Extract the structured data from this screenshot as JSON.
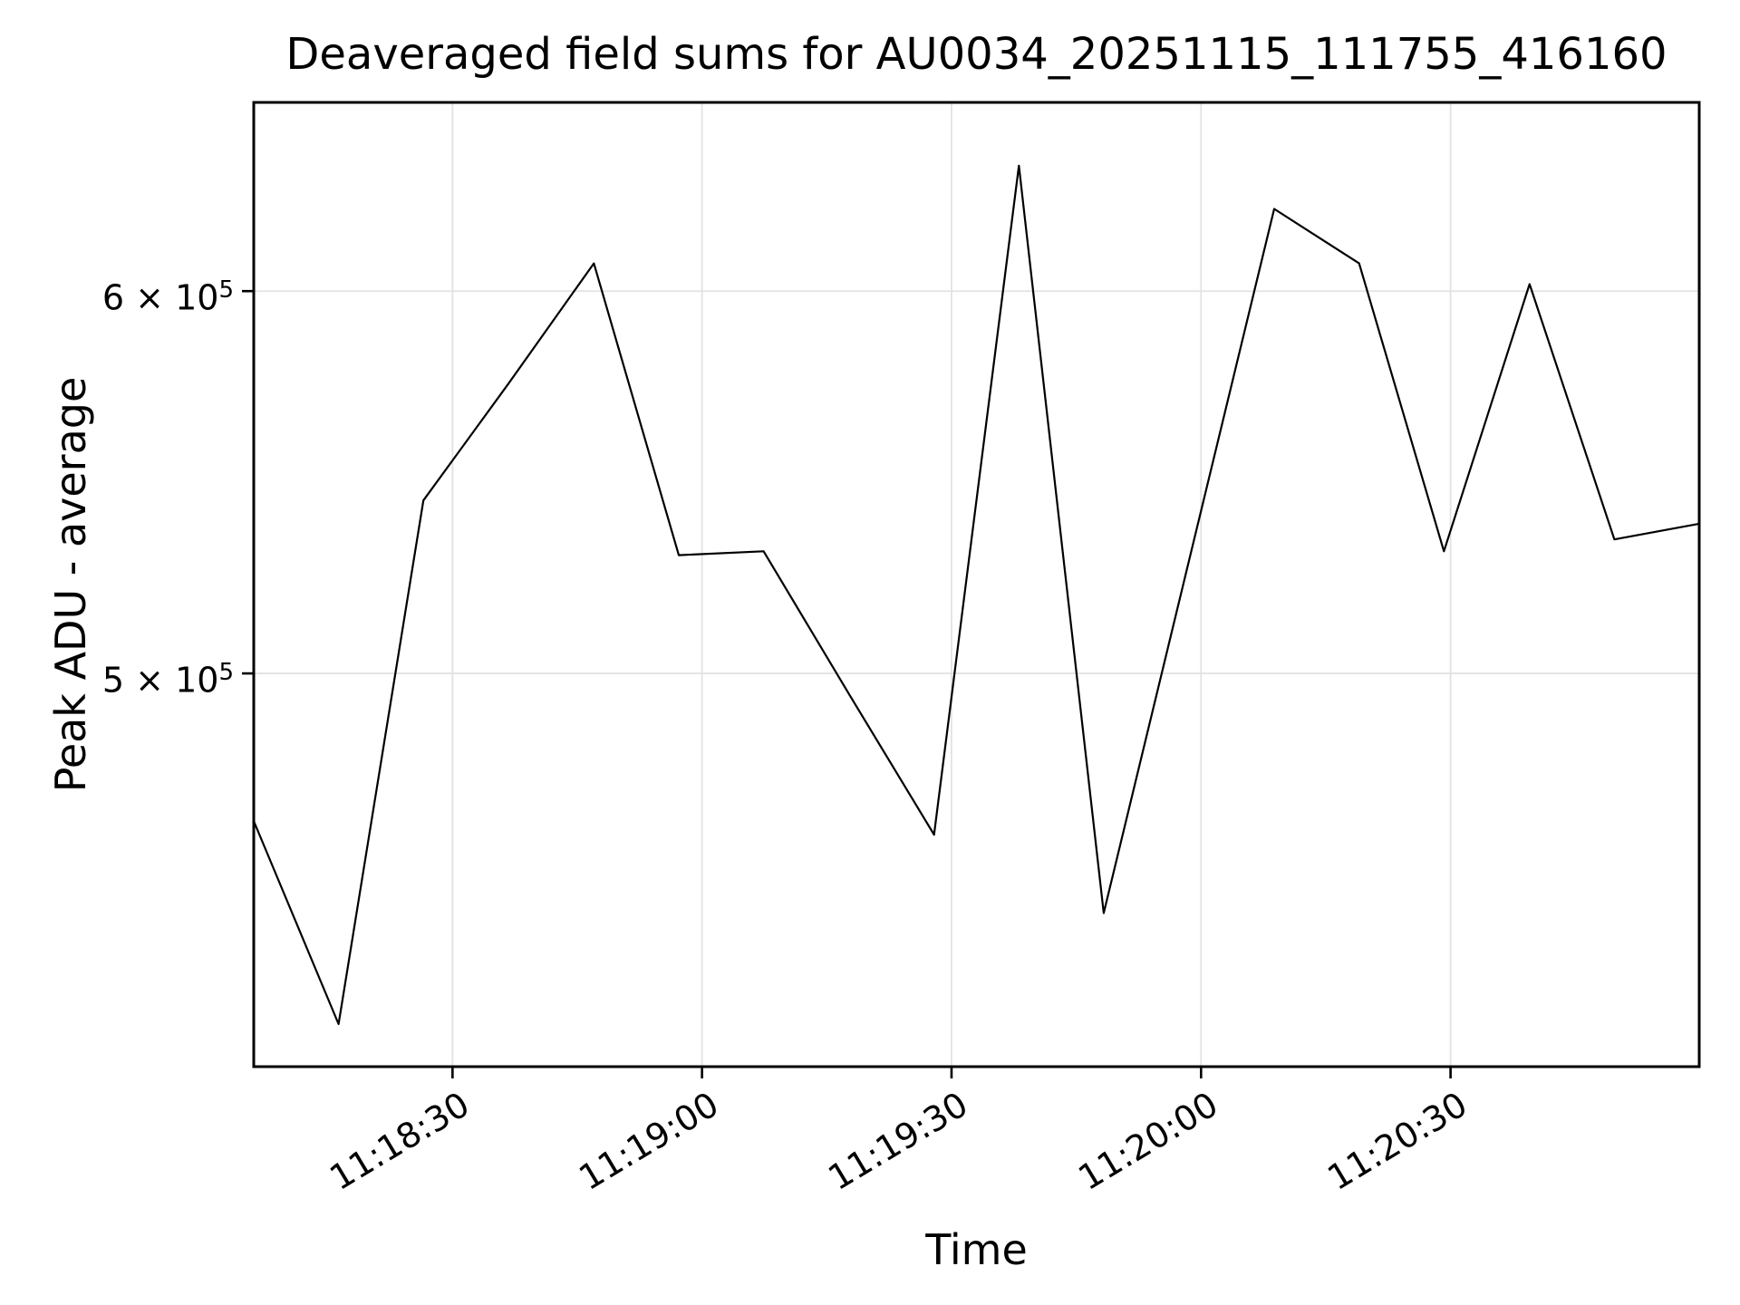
{
  "chart_data": {
    "type": "line",
    "title": "Deaveraged field sums for AU0034_20251115_111755_416160",
    "xlabel": "Time",
    "ylabel": "Peak ADU - average",
    "yscale": "log",
    "grid": true,
    "legend": null,
    "colors": {
      "line": "#000000",
      "grid": "#e2e2e2",
      "spine": "#000000",
      "text": "#000000",
      "background": "#ffffff"
    },
    "series": [
      {
        "name": "deaveraged-field-sums",
        "x_time": [
          "11:18:06",
          "11:18:16",
          "11:18:26",
          "11:18:37",
          "11:18:47",
          "11:18:57",
          "11:19:07",
          "11:19:18",
          "11:19:28",
          "11:19:38",
          "11:19:48",
          "11:19:59",
          "11:20:09",
          "11:20:19",
          "11:20:29",
          "11:20:40",
          "11:20:50",
          "11:21:00"
        ],
        "x_seconds": [
          6.1,
          16.3,
          26.5,
          36.7,
          47.0,
          57.2,
          67.4,
          77.7,
          87.9,
          98.1,
          108.3,
          118.6,
          128.8,
          139.0,
          149.2,
          159.5,
          169.7,
          179.9
        ],
        "values": [
          466000,
          423000,
          543000,
          574000,
          608000,
          529000,
          530000,
          495000,
          463000,
          637000,
          446000,
          528000,
          624000,
          608000,
          530000,
          602000,
          533000,
          537000
        ]
      }
    ],
    "xlim_seconds": [
      6.1,
      179.9
    ],
    "ylim": [
      414500,
      656500
    ],
    "xticks": [
      {
        "seconds": 30,
        "label": "11:18:30"
      },
      {
        "seconds": 60,
        "label": "11:19:00"
      },
      {
        "seconds": 90,
        "label": "11:19:30"
      },
      {
        "seconds": 120,
        "label": "11:20:00"
      },
      {
        "seconds": 150,
        "label": "11:20:30"
      }
    ],
    "yticks": [
      {
        "value": 500000,
        "label": "5 × 10⁵",
        "base": "5 × 10",
        "exp": "5"
      },
      {
        "value": 600000,
        "label": "6 × 10⁵",
        "base": "6 × 10",
        "exp": "5"
      }
    ]
  }
}
